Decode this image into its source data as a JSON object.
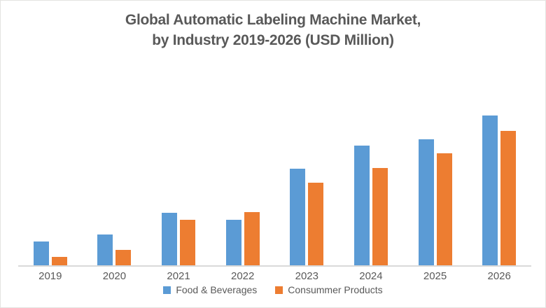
{
  "title": {
    "line1": "Global Automatic Labeling Machine Market,",
    "line2": "by Industry 2019-2026 (USD Million)"
  },
  "colors": {
    "food_beverages": "#5B9BD5",
    "consumer_products": "#ED7D31",
    "text": "#595959",
    "axis_line": "#D9D9D9"
  },
  "chart_data": {
    "type": "bar",
    "title": "Global Automatic Labeling Machine Market, by Industry 2019-2026 (USD Million)",
    "categories": [
      "2019",
      "2020",
      "2021",
      "2022",
      "2023",
      "2024",
      "2025",
      "2026"
    ],
    "series": [
      {
        "name": "Food & Beverages",
        "color": "#5B9BD5",
        "values": [
          340,
          440,
          750,
          650,
          1380,
          1710,
          1800,
          2140
        ]
      },
      {
        "name": "Consummer Products",
        "color": "#ED7D31",
        "values": [
          120,
          220,
          650,
          760,
          1180,
          1390,
          1600,
          1920
        ]
      }
    ],
    "xlabel": "",
    "ylabel": "",
    "ylim": [
      0,
      2900
    ],
    "grid": false,
    "y_axis_visible": false,
    "legend_position": "bottom"
  }
}
